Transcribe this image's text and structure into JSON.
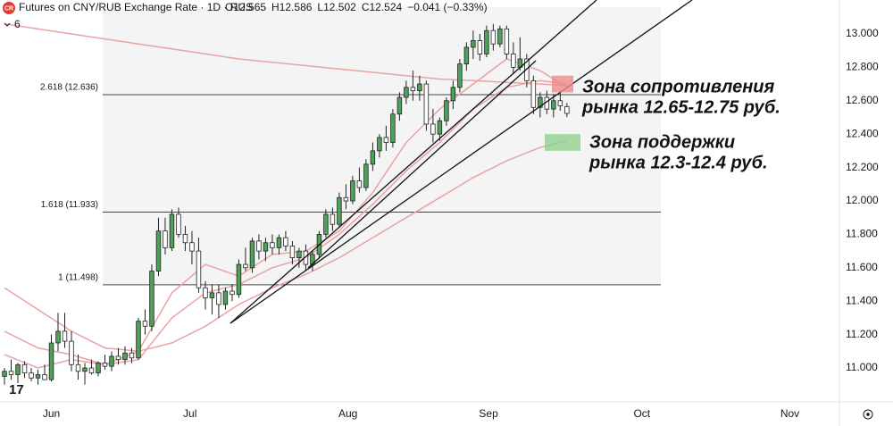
{
  "chart_data": {
    "type": "candlestick",
    "logo": "CR",
    "title": "Futures on CNY/RUB Exchange Rate · 1D · RUS",
    "ohlc_labels": [
      "O12.565",
      "H12.586",
      "L12.502",
      "C12.524",
      "−0.041 (−0.33%)"
    ],
    "indicators_label": "6",
    "x": [
      0,
      1,
      2,
      3,
      4,
      5,
      6,
      7,
      8,
      9,
      10,
      11,
      12,
      13,
      14,
      15,
      16,
      17,
      18,
      19,
      20,
      21,
      22,
      23,
      24,
      25,
      26,
      27,
      28,
      29,
      30,
      31,
      32,
      33,
      34,
      35,
      36,
      37,
      38,
      39,
      40,
      41,
      42,
      43,
      44,
      45,
      46,
      47,
      48,
      49,
      50,
      51,
      52,
      53,
      54,
      55,
      56,
      57,
      58,
      59,
      60,
      61,
      62,
      63,
      64,
      65,
      66,
      67,
      68,
      69,
      70,
      71,
      72,
      73,
      74,
      75,
      76,
      77,
      78,
      79,
      80,
      81,
      82,
      83,
      84
    ],
    "open": [
      10.95,
      10.98,
      10.96,
      11.02,
      10.97,
      10.94,
      10.96,
      10.93,
      11.15,
      11.22,
      11.16,
      11.02,
      10.98,
      11.0,
      10.97,
      11.03,
      11.01,
      11.07,
      11.05,
      11.09,
      11.06,
      11.28,
      11.25,
      11.58,
      11.82,
      11.72,
      11.92,
      11.8,
      11.75,
      11.7,
      11.48,
      11.42,
      11.45,
      11.38,
      11.46,
      11.44,
      11.62,
      11.6,
      11.76,
      11.7,
      11.75,
      11.72,
      11.78,
      11.73,
      11.66,
      11.7,
      11.62,
      11.68,
      11.8,
      11.92,
      11.86,
      12.02,
      12.0,
      12.12,
      12.08,
      12.22,
      12.3,
      12.38,
      12.35,
      12.52,
      12.62,
      12.68,
      12.66,
      12.7,
      12.46,
      12.4,
      12.48,
      12.6,
      12.68,
      12.82,
      12.92,
      12.96,
      12.88,
      13.02,
      12.94,
      13.03,
      12.88,
      12.8,
      12.85,
      12.72,
      12.56,
      12.62,
      12.55,
      12.6,
      12.565
    ],
    "high": [
      11.0,
      11.05,
      11.03,
      11.04,
      11.0,
      10.99,
      11.02,
      11.2,
      11.33,
      11.33,
      11.22,
      11.08,
      11.03,
      11.05,
      11.04,
      11.08,
      11.1,
      11.12,
      11.13,
      11.12,
      11.3,
      11.35,
      11.62,
      11.9,
      11.9,
      11.95,
      11.96,
      11.85,
      11.82,
      11.78,
      11.52,
      11.5,
      11.5,
      11.48,
      11.5,
      11.65,
      11.72,
      11.78,
      11.8,
      11.78,
      11.8,
      11.8,
      11.82,
      11.76,
      11.72,
      11.74,
      11.7,
      11.82,
      11.95,
      11.96,
      12.05,
      12.1,
      12.15,
      12.2,
      12.25,
      12.35,
      12.4,
      12.45,
      12.55,
      12.65,
      12.72,
      12.78,
      12.75,
      12.72,
      12.55,
      12.5,
      12.62,
      12.72,
      12.85,
      12.95,
      13.02,
      13.0,
      13.05,
      13.06,
      13.05,
      13.05,
      12.95,
      12.98,
      12.88,
      12.75,
      12.65,
      12.66,
      12.64,
      12.66,
      12.586
    ],
    "low": [
      10.9,
      10.93,
      10.91,
      10.94,
      10.92,
      10.9,
      10.93,
      10.92,
      11.1,
      11.12,
      10.98,
      10.93,
      10.9,
      10.96,
      10.95,
      10.99,
      10.98,
      11.02,
      11.02,
      11.03,
      11.05,
      11.2,
      11.22,
      11.55,
      11.68,
      11.7,
      11.78,
      11.7,
      11.62,
      11.45,
      11.35,
      11.32,
      11.3,
      11.35,
      11.4,
      11.42,
      11.58,
      11.57,
      11.65,
      11.64,
      11.68,
      11.68,
      11.7,
      11.62,
      11.6,
      11.58,
      11.58,
      11.66,
      11.78,
      11.82,
      11.84,
      11.95,
      11.98,
      12.05,
      12.06,
      12.18,
      12.26,
      12.3,
      12.32,
      12.48,
      12.58,
      12.6,
      12.6,
      12.42,
      12.35,
      12.36,
      12.45,
      12.55,
      12.65,
      12.78,
      12.85,
      12.84,
      12.86,
      12.9,
      12.92,
      12.85,
      12.76,
      12.78,
      12.68,
      12.52,
      12.5,
      12.52,
      12.5,
      12.54,
      12.502
    ],
    "close": [
      10.98,
      10.96,
      11.02,
      10.97,
      10.94,
      10.96,
      10.93,
      11.15,
      11.22,
      11.16,
      11.02,
      10.98,
      11.0,
      10.97,
      11.03,
      11.01,
      11.07,
      11.05,
      11.09,
      11.06,
      11.28,
      11.25,
      11.58,
      11.82,
      11.72,
      11.92,
      11.8,
      11.75,
      11.7,
      11.48,
      11.42,
      11.45,
      11.38,
      11.46,
      11.44,
      11.62,
      11.6,
      11.76,
      11.7,
      11.75,
      11.72,
      11.78,
      11.73,
      11.66,
      11.7,
      11.62,
      11.68,
      11.8,
      11.92,
      11.86,
      12.02,
      12.0,
      12.12,
      12.08,
      12.22,
      12.3,
      12.38,
      12.35,
      12.52,
      12.62,
      12.68,
      12.66,
      12.7,
      12.46,
      12.4,
      12.48,
      12.6,
      12.68,
      12.82,
      12.92,
      12.96,
      12.88,
      13.02,
      12.94,
      13.03,
      12.88,
      12.8,
      12.85,
      12.72,
      12.56,
      12.62,
      12.55,
      12.6,
      12.57,
      12.524
    ],
    "up_color": "#4ea05a",
    "down_color": "#ffffff",
    "series": [
      {
        "color": "#e9a3a3",
        "x": [
          0,
          5,
          10,
          15,
          20,
          25,
          30,
          35,
          40,
          45,
          50,
          55,
          60,
          65,
          70,
          75,
          80,
          84
        ],
        "values": [
          13.06,
          13.03,
          13.0,
          12.97,
          12.94,
          12.91,
          12.88,
          12.85,
          12.83,
          12.81,
          12.79,
          12.77,
          12.75,
          12.73,
          12.72,
          12.71,
          12.7,
          12.69
        ]
      },
      {
        "color": "#e9a3a3",
        "x": [
          0,
          5,
          10,
          15,
          20,
          25,
          30,
          35,
          40,
          45,
          50,
          55,
          60,
          65,
          70,
          75,
          80,
          84
        ],
        "values": [
          11.48,
          11.35,
          11.22,
          11.12,
          11.1,
          11.15,
          11.25,
          11.38,
          11.48,
          11.56,
          11.66,
          11.78,
          11.9,
          12.02,
          12.14,
          12.24,
          12.32,
          12.36
        ]
      },
      {
        "color": "#e9a3a3",
        "x": [
          0,
          5,
          10,
          15,
          20,
          25,
          30,
          35,
          40,
          45,
          50,
          55,
          60,
          65,
          70,
          75,
          80,
          84
        ],
        "values": [
          11.22,
          11.12,
          11.08,
          11.02,
          11.05,
          11.3,
          11.45,
          11.5,
          11.6,
          11.66,
          11.8,
          11.98,
          12.18,
          12.35,
          12.55,
          12.68,
          12.72,
          12.7
        ]
      },
      {
        "color": "#e9a3a3",
        "x": [
          0,
          5,
          10,
          15,
          20,
          25,
          30,
          35,
          40,
          45,
          50,
          55,
          60,
          65,
          70,
          75,
          80,
          84
        ],
        "values": [
          11.08,
          11.0,
          11.05,
          11.02,
          11.1,
          11.45,
          11.62,
          11.55,
          11.68,
          11.7,
          11.82,
          12.05,
          12.35,
          12.55,
          12.7,
          12.85,
          12.78,
          12.68
        ]
      }
    ],
    "levels": [
      {
        "value": 12.636,
        "label": "2.618 (12.636)"
      },
      {
        "value": 11.933,
        "label": "1.618 (11.933)"
      },
      {
        "value": 11.498,
        "label": "1 (11.498)"
      }
    ],
    "annotations": [
      {
        "lines": [
          "Зона сопротивления",
          "рынка 12.65-12.75 руб."
        ],
        "range": [
          12.65,
          12.75
        ],
        "color": "#f08a8a"
      },
      {
        "lines": [
          "Зона поддержки",
          "рынка 12.3-12.4 руб."
        ],
        "range": [
          12.3,
          12.4
        ],
        "color": "#8fd08f"
      }
    ],
    "xlim": [
      -0.67,
      124.7
    ],
    "xticks": [
      {
        "value": 7,
        "label": "Jun"
      },
      {
        "value": 27.7,
        "label": "Jul"
      },
      {
        "value": 51.3,
        "label": "Aug"
      },
      {
        "value": 72.3,
        "label": "Sep"
      },
      {
        "value": 95.2,
        "label": "Oct"
      },
      {
        "value": 117.3,
        "label": "Nov"
      }
    ],
    "ylim": [
      10.797,
      13.203
    ],
    "yticks": [
      {
        "value": 11,
        "label": "11.000"
      },
      {
        "value": 11.2,
        "label": "11.200"
      },
      {
        "value": 11.4,
        "label": "11.400"
      },
      {
        "value": 11.6,
        "label": "11.600"
      },
      {
        "value": 11.8,
        "label": "11.800"
      },
      {
        "value": 12,
        "label": "12.000"
      },
      {
        "value": 12.2,
        "label": "12.200"
      },
      {
        "value": 12.4,
        "label": "12.400"
      },
      {
        "value": 12.6,
        "label": "12.600"
      },
      {
        "value": 12.8,
        "label": "12.800"
      },
      {
        "value": 13,
        "label": "13.000"
      }
    ],
    "grid": false
  }
}
